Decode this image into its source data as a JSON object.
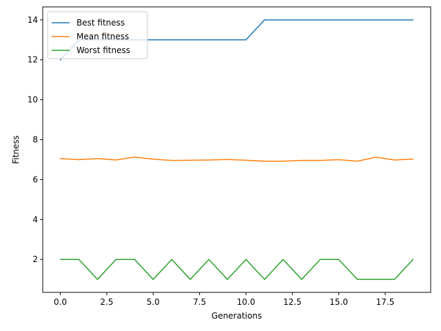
{
  "chart_data": {
    "type": "line",
    "title": "",
    "xlabel": "Generations",
    "ylabel": "Fitness",
    "xlim": [
      -0.95,
      19.95
    ],
    "ylim": [
      0.35,
      14.65
    ],
    "xticks": [
      0.0,
      2.5,
      5.0,
      7.5,
      10.0,
      12.5,
      15.0,
      17.5
    ],
    "xtick_labels": [
      "0.0",
      "2.5",
      "5.0",
      "7.5",
      "10.0",
      "12.5",
      "15.0",
      "17.5"
    ],
    "yticks": [
      2,
      4,
      6,
      8,
      10,
      12,
      14
    ],
    "ytick_labels": [
      "2",
      "4",
      "6",
      "8",
      "10",
      "12",
      "14"
    ],
    "grid": false,
    "legend_position": "top-left",
    "x": [
      0,
      1,
      2,
      3,
      4,
      5,
      6,
      7,
      8,
      9,
      10,
      11,
      12,
      13,
      14,
      15,
      16,
      17,
      18,
      19
    ],
    "series": [
      {
        "name": "Best fitness",
        "color": "#1f77b4",
        "values": [
          12,
          13,
          13,
          13,
          13,
          13,
          13,
          13,
          13,
          13,
          13,
          14,
          14,
          14,
          14,
          14,
          14,
          14,
          14,
          14
        ]
      },
      {
        "name": "Mean fitness",
        "color": "#ff7f0e",
        "values": [
          7.05,
          7.0,
          7.05,
          6.98,
          7.13,
          7.02,
          6.96,
          6.97,
          6.98,
          7.01,
          6.97,
          6.92,
          6.92,
          6.96,
          6.96,
          7.0,
          6.92,
          7.12,
          6.98,
          7.03
        ]
      },
      {
        "name": "Worst fitness",
        "color": "#2ca02c",
        "values": [
          2,
          2,
          1,
          2,
          2,
          1,
          2,
          1,
          2,
          1,
          2,
          1,
          2,
          1,
          2,
          2,
          1,
          1,
          1,
          2
        ]
      }
    ]
  }
}
